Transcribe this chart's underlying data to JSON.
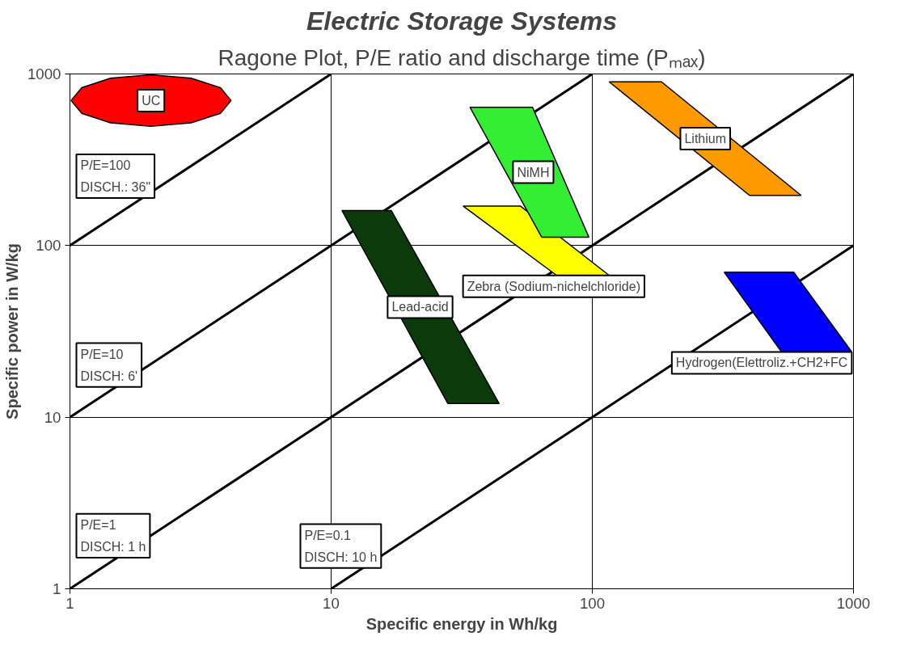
{
  "chart_data": {
    "type": "area",
    "title": "Electric Storage Systems",
    "subtitle": "Ragone Plot, P/E ratio and discharge time (Pₘₐₓ)",
    "xlabel": "Specific energy in Wh/kg",
    "ylabel": "Specific power in W/kg",
    "log": "xy",
    "grid": true,
    "xlim": [
      1,
      1000
    ],
    "ylim": [
      1,
      1000
    ],
    "xticks": [
      1,
      10,
      100,
      1000
    ],
    "yticks": [
      1,
      10,
      100,
      1000
    ],
    "series": [
      {
        "type": "line",
        "color": "#000000",
        "x": [
          1,
          10
        ],
        "values": [
          100,
          1000
        ]
      },
      {
        "type": "line",
        "color": "#000000",
        "x": [
          1,
          100
        ],
        "values": [
          10,
          1000
        ]
      },
      {
        "type": "line",
        "color": "#000000",
        "x": [
          1,
          1000
        ],
        "values": [
          1,
          1000
        ]
      },
      {
        "type": "line",
        "color": "#000000",
        "x": [
          10,
          1000
        ],
        "values": [
          1,
          100
        ]
      },
      {
        "name": "UC",
        "color": "#ff0000",
        "x": [
          4.14,
          3.77,
          2.91,
          2.04,
          1.43,
          1.11,
          1.01,
          1.11,
          1.43,
          2.04,
          2.91,
          3.77
        ],
        "values": [
          700,
          832,
          944,
          988,
          944,
          832,
          700,
          589,
          519,
          495,
          519,
          589
        ]
      },
      {
        "name": "Lead-acid",
        "color": "#0b3a0b",
        "x": [
          11,
          17,
          44,
          28
        ],
        "values": [
          160,
          160,
          12,
          12
        ]
      },
      {
        "name": "Zebra (Sodium-nichelchloride)",
        "color": "#ffff00",
        "x": [
          32,
          53,
          116,
          73
        ],
        "values": [
          170,
          170,
          67,
          67
        ]
      },
      {
        "name": "NiMH",
        "color": "#33ee33",
        "x": [
          34,
          59,
          97,
          64
        ],
        "values": [
          640,
          640,
          112,
          112
        ]
      },
      {
        "name": "Lithium",
        "color": "#ff9900",
        "x": [
          116,
          184,
          630,
          400
        ],
        "values": [
          900,
          900,
          196,
          196
        ]
      },
      {
        "name": "Hydrogen(Elettroliz.+CH2+FC",
        "color": "#0000ff",
        "x": [
          320,
          590,
          985,
          530
        ],
        "values": [
          70,
          70,
          24,
          24
        ]
      }
    ],
    "annotations": [
      "P/E=100\nDISCH.: 36\"",
      "P/E=10\nDISCH: 6'",
      "P/E=1\nDISCH: 1 h",
      "P/E=0.1\nDISCH: 10 h"
    ]
  }
}
